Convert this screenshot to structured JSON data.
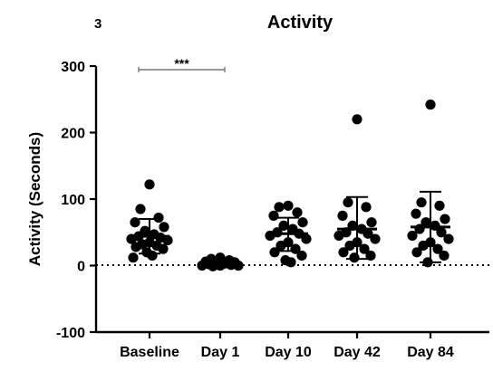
{
  "figure": {
    "panel_label": "3"
  },
  "chart_data": {
    "type": "scatter",
    "title": "Activity",
    "xlabel": "",
    "ylabel": "Activity (Seconds)",
    "ylim": [
      -100,
      300
    ],
    "yticks": [
      -100,
      0,
      100,
      200,
      300
    ],
    "reference_line": 0,
    "grid": false,
    "categories": [
      "Baseline",
      "Day 1",
      "Day 10",
      "Day 42",
      "Day 84"
    ],
    "series": [
      {
        "category": "Baseline",
        "mean": 44,
        "error_low": 18,
        "error_high": 70,
        "values": [
          122,
          85,
          72,
          65,
          58,
          52,
          47,
          44,
          42,
          40,
          38,
          35,
          32,
          30,
          28,
          25,
          20,
          15,
          12
        ]
      },
      {
        "category": "Day 1",
        "mean": 3,
        "error_low": 0,
        "error_high": 6,
        "values": [
          12,
          10,
          8,
          6,
          5,
          4,
          3,
          2,
          1,
          0,
          0,
          0,
          -1
        ]
      },
      {
        "category": "Day 10",
        "mean": 48,
        "error_low": 22,
        "error_high": 72,
        "values": [
          90,
          88,
          80,
          75,
          65,
          60,
          55,
          50,
          48,
          45,
          40,
          35,
          30,
          25,
          20,
          15,
          8,
          5
        ]
      },
      {
        "category": "Day 42",
        "mean": 55,
        "error_low": 10,
        "error_high": 103,
        "values": [
          220,
          95,
          88,
          75,
          65,
          60,
          55,
          50,
          48,
          45,
          40,
          35,
          30,
          25,
          20,
          15,
          12
        ]
      },
      {
        "category": "Day 84",
        "mean": 58,
        "error_low": 5,
        "error_high": 111,
        "values": [
          242,
          95,
          90,
          78,
          70,
          65,
          60,
          55,
          50,
          45,
          40,
          35,
          30,
          25,
          20,
          15,
          5
        ]
      }
    ],
    "annotations": [
      {
        "text": "***",
        "from": "Baseline",
        "to": "Day 1"
      }
    ]
  }
}
